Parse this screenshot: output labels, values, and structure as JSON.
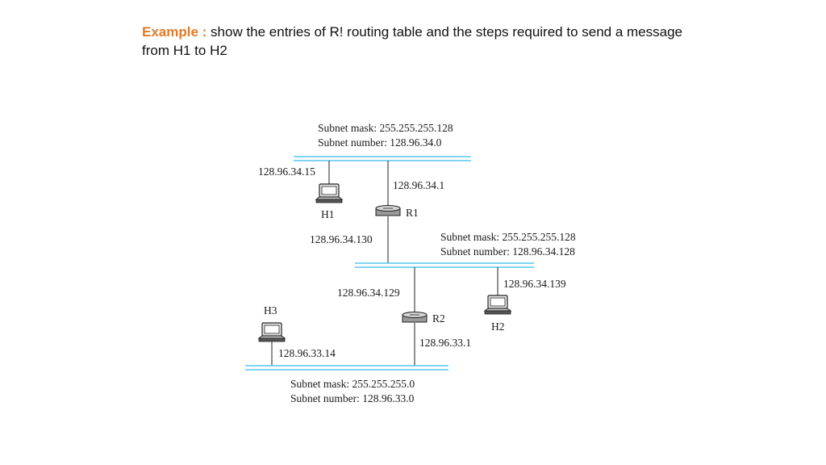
{
  "heading": {
    "label": "Example :",
    "text": " show the entries of R! routing table and the steps required to send a message from H1 to H2"
  },
  "diagram": {
    "networks": [
      {
        "mask": "Subnet mask: 255.255.255.128",
        "number": "Subnet number: 128.96.34.0"
      },
      {
        "mask": "Subnet mask: 255.255.255.128",
        "number": "Subnet number: 128.96.34.128"
      },
      {
        "mask": "Subnet mask: 255.255.255.0",
        "number": "Subnet number: 128.96.33.0"
      }
    ],
    "hosts": {
      "h1": "H1",
      "h2": "H2",
      "h3": "H3"
    },
    "routers": {
      "r1": "R1",
      "r2": "R2"
    },
    "addresses": {
      "h1": "128.96.34.15",
      "r1_top": "128.96.34.1",
      "r1_bottom": "128.96.34.130",
      "h2": "128.96.34.139",
      "r2_top": "128.96.34.129",
      "r2_bottom": "128.96.33.1",
      "h3": "128.96.33.14"
    }
  }
}
